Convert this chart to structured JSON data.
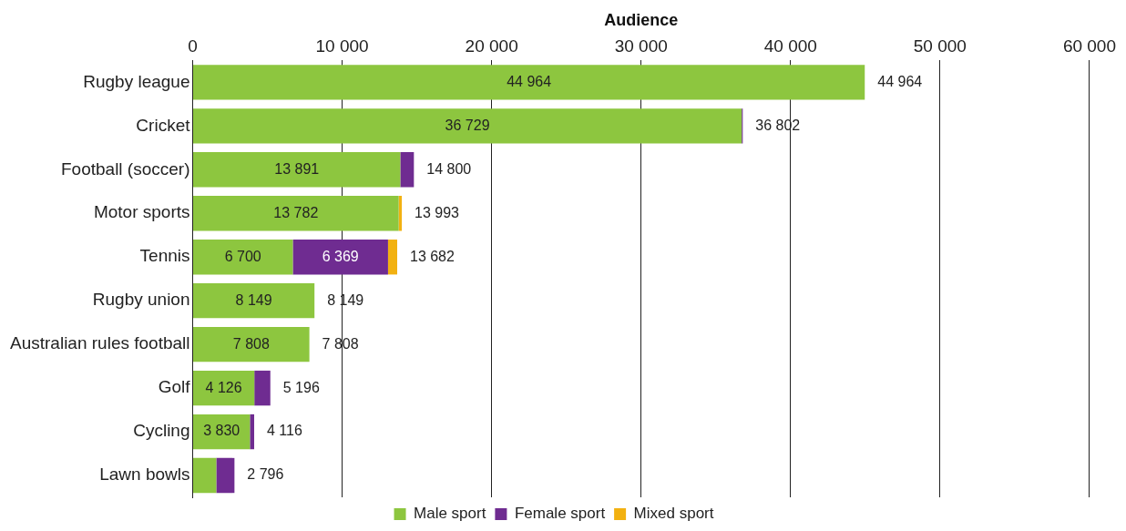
{
  "chart_data": {
    "type": "bar",
    "orientation": "horizontal",
    "stacked": true,
    "xlabel": "Audience",
    "categories": [
      "Rugby league",
      "Cricket",
      "Football (soccer)",
      "Motor sports",
      "Tennis",
      "Rugby union",
      "Australian rules football",
      "Golf",
      "Cycling",
      "Lawn bowls"
    ],
    "series": [
      {
        "name": "Male sport",
        "color": "#8dc63f",
        "values": [
          44964,
          36729,
          13891,
          13782,
          6700,
          8149,
          7808,
          4126,
          3830,
          1580
        ],
        "value_labels": [
          "44 964",
          "36 729",
          "13 891",
          "13 782",
          "6 700",
          "8 149",
          "7 808",
          "4 126",
          "3 830",
          null
        ]
      },
      {
        "name": "Female sport",
        "color": "#6f2c91",
        "values": [
          0,
          73,
          909,
          0,
          6369,
          0,
          0,
          1070,
          286,
          1216
        ],
        "value_labels": [
          null,
          null,
          null,
          null,
          "6 369",
          null,
          null,
          null,
          null,
          null
        ]
      },
      {
        "name": "Mixed sport",
        "color": "#f2b111",
        "values": [
          0,
          0,
          0,
          211,
          613,
          0,
          0,
          0,
          0,
          0
        ]
      }
    ],
    "totals": [
      "44 964",
      "36 802",
      "14 800",
      "13 993",
      "13 682",
      "8 149",
      "7 808",
      "5 196",
      "4 116",
      "2 796"
    ],
    "xlim": [
      0,
      60000
    ],
    "xticks": [
      {
        "value": 0,
        "label": "0"
      },
      {
        "value": 10000,
        "label": "10 000"
      },
      {
        "value": 20000,
        "label": "20 000"
      },
      {
        "value": 30000,
        "label": "30 000"
      },
      {
        "value": 40000,
        "label": "40 000"
      },
      {
        "value": 50000,
        "label": "50 000"
      },
      {
        "value": 60000,
        "label": "60 000"
      }
    ],
    "grid": "x",
    "legend": "bottom"
  }
}
